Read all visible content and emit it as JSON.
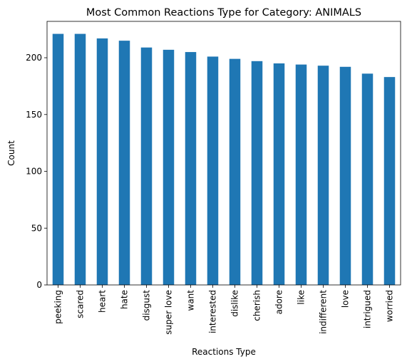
{
  "chart_data": {
    "type": "bar",
    "title": "Most Common Reactions Type for Category: ANIMALS",
    "xlabel": "Reactions Type",
    "ylabel": "Count",
    "categories": [
      "peeking",
      "scared",
      "heart",
      "hate",
      "disgust",
      "super love",
      "want",
      "interested",
      "dislike",
      "cherish",
      "adore",
      "like",
      "indifferent",
      "love",
      "intrigued",
      "worried"
    ],
    "values": [
      221,
      221,
      217,
      215,
      209,
      207,
      205,
      201,
      199,
      197,
      195,
      194,
      193,
      192,
      186,
      183
    ],
    "ylim": [
      0,
      232
    ],
    "yticks": [
      0,
      50,
      100,
      150,
      200
    ],
    "bar_color": "#1f77b4",
    "grid": false,
    "legend": "none"
  }
}
